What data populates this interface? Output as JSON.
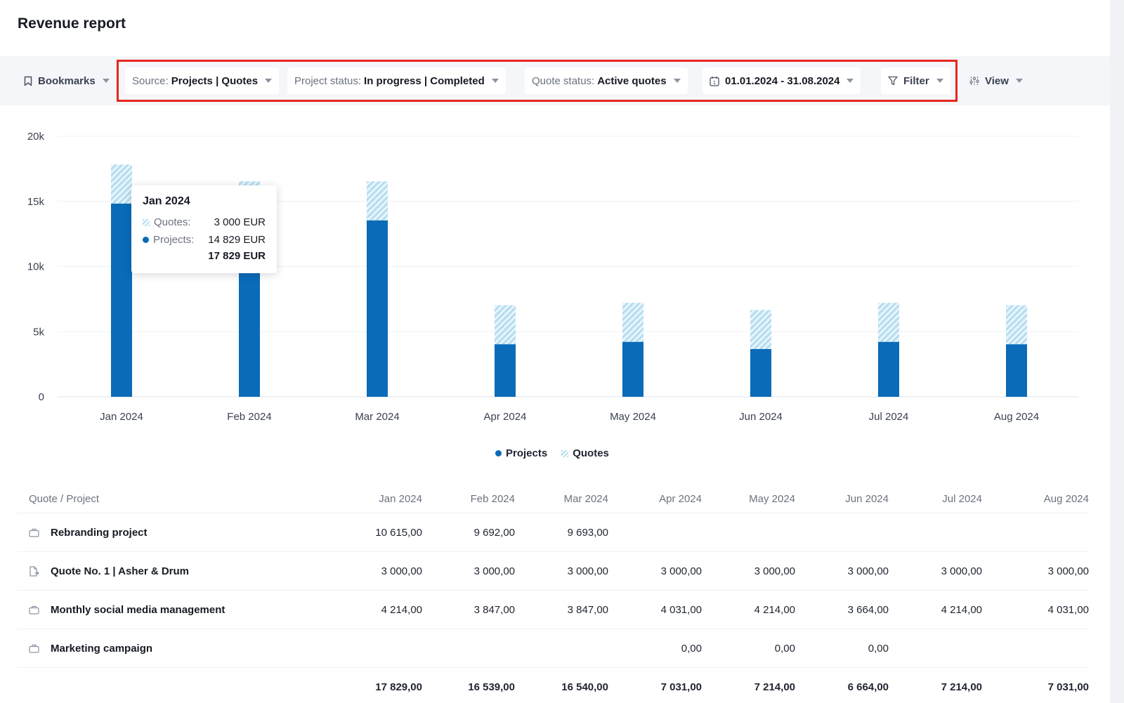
{
  "page": {
    "title": "Revenue report"
  },
  "toolbar": {
    "bookmarks_label": "Bookmarks",
    "source": {
      "label": "Source:",
      "value": "Projects | Quotes"
    },
    "project_status": {
      "label": "Project status:",
      "value": "In progress | Completed"
    },
    "quote_status": {
      "label": "Quote status:",
      "value": "Active quotes"
    },
    "date_range": "01.01.2024 - 31.08.2024",
    "filter_label": "Filter",
    "view_label": "View"
  },
  "chart_data": {
    "type": "bar",
    "stacked": true,
    "categories": [
      "Jan 2024",
      "Feb 2024",
      "Mar 2024",
      "Apr 2024",
      "May 2024",
      "Jun 2024",
      "Jul 2024",
      "Aug 2024"
    ],
    "series": [
      {
        "name": "Projects",
        "values": [
          14829,
          13539,
          13540,
          4031,
          4214,
          3664,
          4214,
          4031
        ],
        "color": "#0a6bb8"
      },
      {
        "name": "Quotes",
        "values": [
          3000,
          3000,
          3000,
          3000,
          3000,
          3000,
          3000,
          3000
        ],
        "color": "#b5ddf0"
      }
    ],
    "yticks": [
      "0",
      "5k",
      "10k",
      "15k",
      "20k"
    ],
    "ylim": [
      0,
      20000
    ],
    "grid": true,
    "legend": "bottom-center"
  },
  "tooltip": {
    "title": "Jan 2024",
    "quotes_label": "Quotes:",
    "quotes_value": "3 000 EUR",
    "projects_label": "Projects:",
    "projects_value": "14 829 EUR",
    "total": "17 829 EUR"
  },
  "table": {
    "name_header": "Quote / Project",
    "months": [
      "Jan 2024",
      "Feb 2024",
      "Mar 2024",
      "Apr 2024",
      "May 2024",
      "Jun 2024",
      "Jul 2024",
      "Aug 2024"
    ],
    "rows": [
      {
        "icon": "briefcase-icon",
        "name": "Rebranding project",
        "values": [
          "10 615,00",
          "9 692,00",
          "9 693,00",
          "",
          "",
          "",
          "",
          ""
        ]
      },
      {
        "icon": "quote-document-icon",
        "name": "Quote No. 1 | Asher & Drum",
        "values": [
          "3 000,00",
          "3 000,00",
          "3 000,00",
          "3 000,00",
          "3 000,00",
          "3 000,00",
          "3 000,00",
          "3 000,00"
        ]
      },
      {
        "icon": "briefcase-icon",
        "name": "Monthly social media management",
        "values": [
          "4 214,00",
          "3 847,00",
          "3 847,00",
          "4 031,00",
          "4 214,00",
          "3 664,00",
          "4 214,00",
          "4 031,00"
        ]
      },
      {
        "icon": "briefcase-icon",
        "name": "Marketing campaign",
        "values": [
          "",
          "",
          "",
          "0,00",
          "0,00",
          "0,00",
          "",
          ""
        ]
      }
    ],
    "totals": [
      "17 829,00",
      "16 539,00",
      "16 540,00",
      "7 031,00",
      "7 214,00",
      "6 664,00",
      "7 214,00",
      "7 031,00"
    ]
  }
}
